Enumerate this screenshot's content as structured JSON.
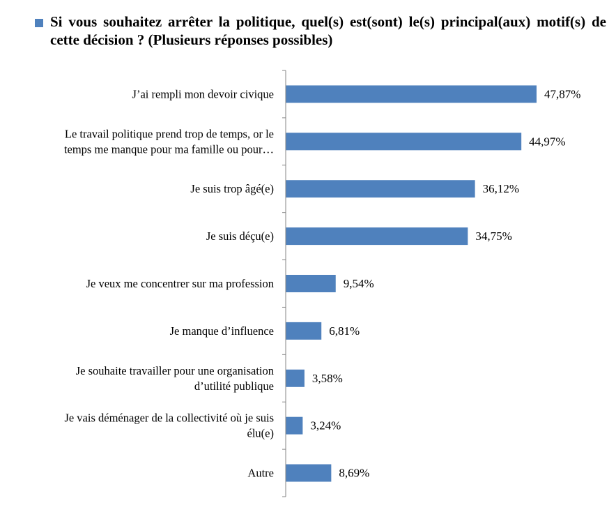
{
  "chart_data": {
    "type": "bar",
    "orientation": "horizontal",
    "legend": "Si vous souhaitez arrêter la politique, quel(s) est(sont) le(s) principal(aux) motif(s) de cette décision ?  (Plusieurs réponses possibles)",
    "legend_position": "top",
    "categories": [
      [
        "J’ai rempli mon devoir civique"
      ],
      [
        "Le travail politique prend trop de temps, or le",
        "temps me manque pour ma famille ou pour…"
      ],
      [
        "Je suis trop âgé(e)"
      ],
      [
        "Je suis déçu(e)"
      ],
      [
        "Je veux me concentrer sur ma profession"
      ],
      [
        "Je manque d’influence"
      ],
      [
        "Je souhaite travailler pour une organisation",
        "d’utilité publique"
      ],
      [
        "Je vais déménager de la collectivité où je suis",
        "élu(e)"
      ],
      [
        "Autre"
      ]
    ],
    "values": [
      47.87,
      44.97,
      36.12,
      34.75,
      9.54,
      6.81,
      3.58,
      3.24,
      8.69
    ],
    "value_labels": [
      "47,87%",
      "44,97%",
      "36,12%",
      "34,75%",
      "9,54%",
      "6,81%",
      "3,58%",
      "3,24%",
      "8,69%"
    ],
    "xlim": [
      0,
      50
    ],
    "grid": false,
    "bar_color": "#4f81bd",
    "axis_color": "#868686"
  }
}
